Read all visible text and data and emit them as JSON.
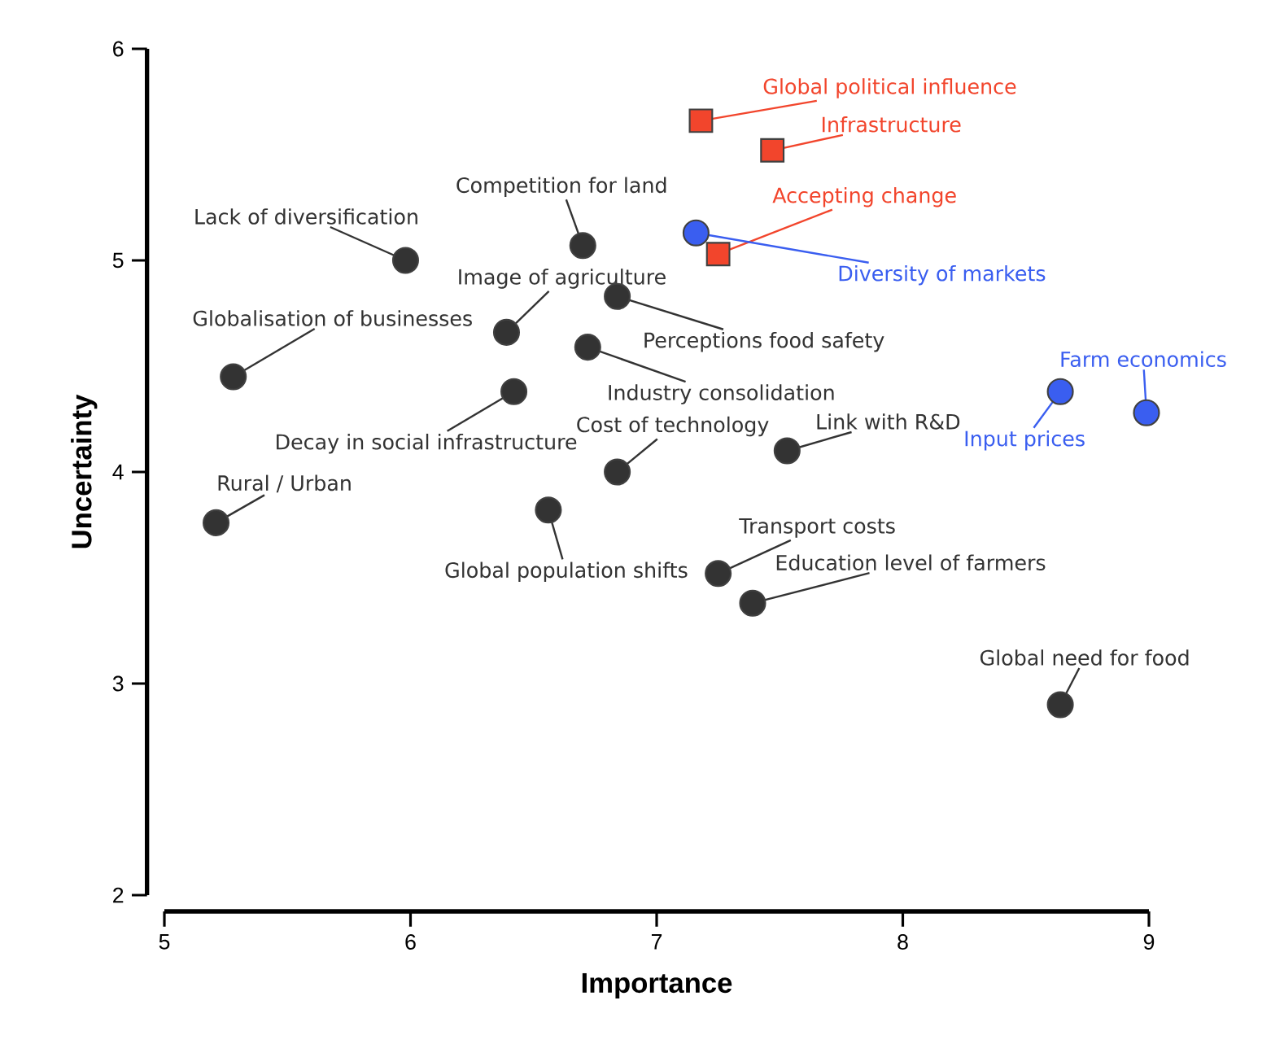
{
  "chart_data": {
    "type": "scatter",
    "xlabel": "Importance",
    "ylabel": "Uncertainty",
    "xlim": [
      5,
      9
    ],
    "ylim": [
      2,
      6
    ],
    "xticks": [
      5,
      6,
      7,
      8,
      9
    ],
    "yticks": [
      2,
      3,
      4,
      5,
      6
    ],
    "grid": false,
    "series": [
      {
        "color": "#333333",
        "marker": "circle",
        "x": [
          5.98,
          6.7,
          6.39,
          6.84,
          6.72,
          5.28,
          6.42,
          6.84,
          7.53,
          5.21,
          6.56,
          7.25,
          7.39,
          8.64
        ],
        "values": [
          5.0,
          5.07,
          4.66,
          4.83,
          4.59,
          4.45,
          4.38,
          4.0,
          4.1,
          3.76,
          3.82,
          3.52,
          3.38,
          2.9
        ]
      },
      {
        "color": "#f2452c",
        "marker": "square",
        "x": [
          7.18,
          7.47,
          7.25
        ],
        "values": [
          5.66,
          5.52,
          5.03
        ]
      },
      {
        "color": "#3a5ef0",
        "marker": "circle",
        "x": [
          7.16,
          8.99,
          8.64
        ],
        "values": [
          5.13,
          4.28,
          4.38
        ]
      }
    ],
    "annotations": [
      {
        "text": "Global political influence",
        "x": 7.18,
        "y": 5.66
      },
      {
        "text": "Infrastructure",
        "x": 7.47,
        "y": 5.52
      },
      {
        "text": "Accepting change",
        "x": 7.25,
        "y": 5.03
      },
      {
        "text": "Diversity of markets",
        "x": 7.16,
        "y": 5.13
      },
      {
        "text": "Farm economics",
        "x": 8.99,
        "y": 4.28
      },
      {
        "text": "Input prices",
        "x": 8.64,
        "y": 4.38
      },
      {
        "text": "Lack of diversification",
        "x": 5.98,
        "y": 5.0
      },
      {
        "text": "Competition for land",
        "x": 6.7,
        "y": 5.07
      },
      {
        "text": "Image of agriculture",
        "x": 6.39,
        "y": 4.66
      },
      {
        "text": "Perceptions food safety",
        "x": 6.84,
        "y": 4.83
      },
      {
        "text": "Industry consolidation",
        "x": 6.72,
        "y": 4.59
      },
      {
        "text": "Globalisation of businesses",
        "x": 5.28,
        "y": 4.45
      },
      {
        "text": "Decay in social infrastructure",
        "x": 6.42,
        "y": 4.38
      },
      {
        "text": "Cost of technology",
        "x": 6.84,
        "y": 4.0
      },
      {
        "text": "Link with R&D",
        "x": 7.53,
        "y": 4.1
      },
      {
        "text": "Rural / Urban",
        "x": 5.21,
        "y": 3.76
      },
      {
        "text": "Global population shifts",
        "x": 6.56,
        "y": 3.82
      },
      {
        "text": "Transport costs",
        "x": 7.25,
        "y": 3.52
      },
      {
        "text": "Education level of farmers",
        "x": 7.39,
        "y": 3.38
      },
      {
        "text": "Global need for food",
        "x": 8.64,
        "y": 2.9
      }
    ]
  }
}
